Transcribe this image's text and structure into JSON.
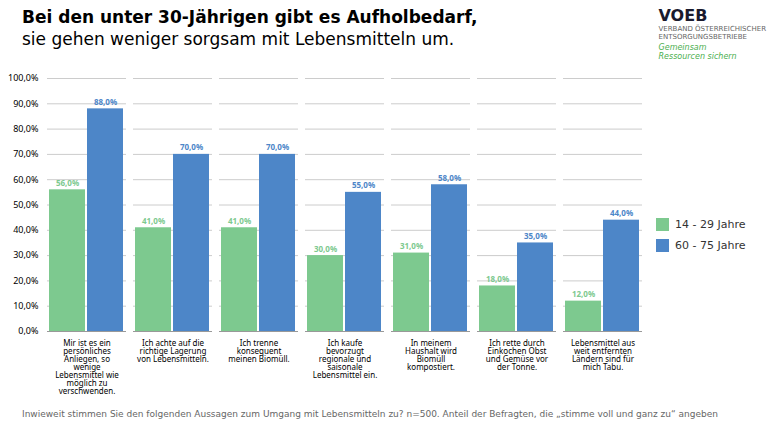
{
  "chart_data": {
    "type": "bar",
    "title": "Bei den unter 30-Jährigen gibt es Aufholbedarf,",
    "subtitle": "sie gehen weniger sorgsam mit Lebensmitteln um.",
    "categories": [
      "Mir ist es ein\npersönliches\nAnliegen, so\nwenige\nLebensmittel wie\nmöglich zu\nverschwenden.",
      "Ich achte auf die\nrichtige Lagerung\nvon Lebensmitteln.",
      "Ich trenne\nkonsequent\nmeinen Biomüll.",
      "Ich kaufe\nbevorzugt\nregionale und\nsaisonale\nLebensmittel ein.",
      "In meinem\nHaushalt wird\nBiomüll\nkompostiert.",
      "Ich rette durch\nEinkochen Obst\nund Gemüse vor\nder Tonne.",
      "Lebensmittel aus\nweit entfernten\nLändern sind für\nmich Tabu."
    ],
    "series": [
      {
        "name": "14 - 29 Jahre",
        "color": "#7DC98F",
        "values": [
          56.0,
          41.0,
          41.0,
          30.0,
          31.0,
          18.0,
          12.0
        ],
        "value_labels": [
          "56,0%",
          "41,0%",
          "41,0%",
          "30,0%",
          "31,0%",
          "18,0%",
          "12,0%"
        ]
      },
      {
        "name": "60 - 75 Jahre",
        "color": "#4D86C8",
        "values": [
          88.0,
          70.0,
          70.0,
          55.0,
          58.0,
          35.0,
          44.0
        ],
        "value_labels": [
          "88,0%",
          "70,0%",
          "70,0%",
          "55,0%",
          "58,0%",
          "35,0%",
          "44,0%"
        ]
      }
    ],
    "ylim": [
      0,
      100
    ],
    "yticks": [
      {
        "value": 0,
        "label": "0,0%"
      },
      {
        "value": 10,
        "label": "10,0%"
      },
      {
        "value": 20,
        "label": "20,0%"
      },
      {
        "value": 30,
        "label": "30,0%"
      },
      {
        "value": 40,
        "label": "40,0%"
      },
      {
        "value": 50,
        "label": "50,0%"
      },
      {
        "value": 60,
        "label": "60,0%"
      },
      {
        "value": 70,
        "label": "70,0%"
      },
      {
        "value": 80,
        "label": "80,0%"
      },
      {
        "value": 90,
        "label": "90,0%"
      },
      {
        "value": 100,
        "label": "100,0%"
      }
    ],
    "grid": true,
    "data_labels": true,
    "legend": "right",
    "annotations": [
      "VOEB",
      "VERBAND ÖSTERREICHISCHER\nENTSORGUNGSBETRIEBE",
      "Gemeinsam\nRessourcen sichern"
    ],
    "caption": "Inwieweit stimmen Sie den folgenden Aussagen zum Umgang mit Lebensmitteln zu? n=500. Anteil der Befragten, die „stimme voll und ganz zu“ angeben"
  }
}
